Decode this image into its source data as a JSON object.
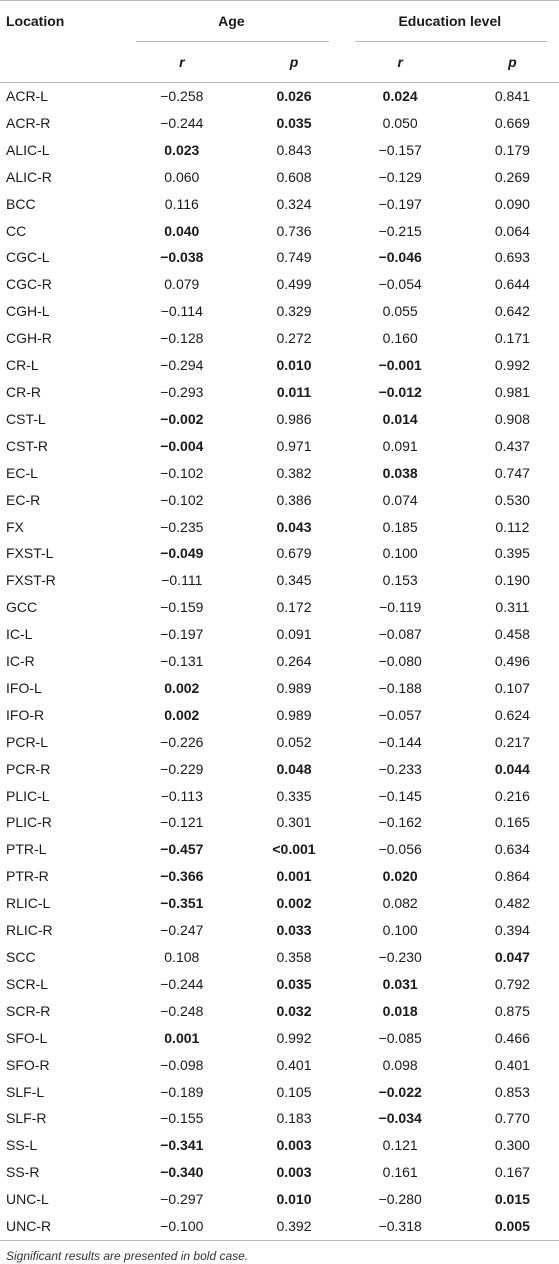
{
  "headers": {
    "location": "Location",
    "age": "Age",
    "education": "Education level",
    "r": "r",
    "p": "p"
  },
  "rows": [
    {
      "loc": "ACR-L",
      "age_r": "−0.258",
      "age_p": "0.026",
      "edu_r": "0.024",
      "edu_p": "0.841",
      "bold": [
        false,
        true,
        true,
        false
      ]
    },
    {
      "loc": "ACR-R",
      "age_r": "−0.244",
      "age_p": "0.035",
      "edu_r": "0.050",
      "edu_p": "0.669",
      "bold": [
        false,
        true,
        false,
        false
      ]
    },
    {
      "loc": "ALIC-L",
      "age_r": "0.023",
      "age_p": "0.843",
      "edu_r": "−0.157",
      "edu_p": "0.179",
      "bold": [
        true,
        false,
        false,
        false
      ]
    },
    {
      "loc": "ALIC-R",
      "age_r": "0.060",
      "age_p": "0.608",
      "edu_r": "−0.129",
      "edu_p": "0.269",
      "bold": [
        false,
        false,
        false,
        false
      ]
    },
    {
      "loc": "BCC",
      "age_r": "0.116",
      "age_p": "0.324",
      "edu_r": "−0.197",
      "edu_p": "0.090",
      "bold": [
        false,
        false,
        false,
        false
      ]
    },
    {
      "loc": "CC",
      "age_r": "0.040",
      "age_p": "0.736",
      "edu_r": "−0.215",
      "edu_p": "0.064",
      "bold": [
        true,
        false,
        false,
        false
      ]
    },
    {
      "loc": "CGC-L",
      "age_r": "−0.038",
      "age_p": "0.749",
      "edu_r": "−0.046",
      "edu_p": "0.693",
      "bold": [
        true,
        false,
        true,
        false
      ]
    },
    {
      "loc": "CGC-R",
      "age_r": "0.079",
      "age_p": "0.499",
      "edu_r": "−0.054",
      "edu_p": "0.644",
      "bold": [
        false,
        false,
        false,
        false
      ]
    },
    {
      "loc": "CGH-L",
      "age_r": "−0.114",
      "age_p": "0.329",
      "edu_r": "0.055",
      "edu_p": "0.642",
      "bold": [
        false,
        false,
        false,
        false
      ]
    },
    {
      "loc": "CGH-R",
      "age_r": "−0.128",
      "age_p": "0.272",
      "edu_r": "0.160",
      "edu_p": "0.171",
      "bold": [
        false,
        false,
        false,
        false
      ]
    },
    {
      "loc": "CR-L",
      "age_r": "−0.294",
      "age_p": "0.010",
      "edu_r": "−0.001",
      "edu_p": "0.992",
      "bold": [
        false,
        true,
        true,
        false
      ]
    },
    {
      "loc": "CR-R",
      "age_r": "−0.293",
      "age_p": "0.011",
      "edu_r": "−0.012",
      "edu_p": "0.981",
      "bold": [
        false,
        true,
        true,
        false
      ]
    },
    {
      "loc": "CST-L",
      "age_r": "−0.002",
      "age_p": "0.986",
      "edu_r": "0.014",
      "edu_p": "0.908",
      "bold": [
        true,
        false,
        true,
        false
      ]
    },
    {
      "loc": "CST-R",
      "age_r": "−0.004",
      "age_p": "0.971",
      "edu_r": "0.091",
      "edu_p": "0.437",
      "bold": [
        true,
        false,
        false,
        false
      ]
    },
    {
      "loc": "EC-L",
      "age_r": "−0.102",
      "age_p": "0.382",
      "edu_r": "0.038",
      "edu_p": "0.747",
      "bold": [
        false,
        false,
        true,
        false
      ]
    },
    {
      "loc": "EC-R",
      "age_r": "−0.102",
      "age_p": "0.386",
      "edu_r": "0.074",
      "edu_p": "0.530",
      "bold": [
        false,
        false,
        false,
        false
      ]
    },
    {
      "loc": "FX",
      "age_r": "−0.235",
      "age_p": "0.043",
      "edu_r": "0.185",
      "edu_p": "0.112",
      "bold": [
        false,
        true,
        false,
        false
      ]
    },
    {
      "loc": "FXST-L",
      "age_r": "−0.049",
      "age_p": "0.679",
      "edu_r": "0.100",
      "edu_p": "0.395",
      "bold": [
        true,
        false,
        false,
        false
      ]
    },
    {
      "loc": "FXST-R",
      "age_r": "−0.111",
      "age_p": "0.345",
      "edu_r": "0.153",
      "edu_p": "0.190",
      "bold": [
        false,
        false,
        false,
        false
      ]
    },
    {
      "loc": "GCC",
      "age_r": "−0.159",
      "age_p": "0.172",
      "edu_r": "−0.119",
      "edu_p": "0.311",
      "bold": [
        false,
        false,
        false,
        false
      ]
    },
    {
      "loc": "IC-L",
      "age_r": "−0.197",
      "age_p": "0.091",
      "edu_r": "−0.087",
      "edu_p": "0.458",
      "bold": [
        false,
        false,
        false,
        false
      ]
    },
    {
      "loc": "IC-R",
      "age_r": "−0.131",
      "age_p": "0.264",
      "edu_r": "−0.080",
      "edu_p": "0.496",
      "bold": [
        false,
        false,
        false,
        false
      ]
    },
    {
      "loc": "IFO-L",
      "age_r": "0.002",
      "age_p": "0.989",
      "edu_r": "−0.188",
      "edu_p": "0.107",
      "bold": [
        true,
        false,
        false,
        false
      ]
    },
    {
      "loc": "IFO-R",
      "age_r": "0.002",
      "age_p": "0.989",
      "edu_r": "−0.057",
      "edu_p": "0.624",
      "bold": [
        true,
        false,
        false,
        false
      ]
    },
    {
      "loc": "PCR-L",
      "age_r": "−0.226",
      "age_p": "0.052",
      "edu_r": "−0.144",
      "edu_p": "0.217",
      "bold": [
        false,
        false,
        false,
        false
      ]
    },
    {
      "loc": "PCR-R",
      "age_r": "−0.229",
      "age_p": "0.048",
      "edu_r": "−0.233",
      "edu_p": "0.044",
      "bold": [
        false,
        true,
        false,
        true
      ]
    },
    {
      "loc": "PLIC-L",
      "age_r": "−0.113",
      "age_p": "0.335",
      "edu_r": "−0.145",
      "edu_p": "0.216",
      "bold": [
        false,
        false,
        false,
        false
      ]
    },
    {
      "loc": "PLIC-R",
      "age_r": "−0.121",
      "age_p": "0.301",
      "edu_r": "−0.162",
      "edu_p": "0.165",
      "bold": [
        false,
        false,
        false,
        false
      ]
    },
    {
      "loc": "PTR-L",
      "age_r": "−0.457",
      "age_p": "<0.001",
      "edu_r": "−0.056",
      "edu_p": "0.634",
      "bold": [
        true,
        true,
        false,
        false
      ]
    },
    {
      "loc": "PTR-R",
      "age_r": "−0.366",
      "age_p": "0.001",
      "edu_r": "0.020",
      "edu_p": "0.864",
      "bold": [
        true,
        true,
        true,
        false
      ]
    },
    {
      "loc": "RLIC-L",
      "age_r": "−0.351",
      "age_p": "0.002",
      "edu_r": "0.082",
      "edu_p": "0.482",
      "bold": [
        true,
        true,
        false,
        false
      ]
    },
    {
      "loc": "RLIC-R",
      "age_r": "−0.247",
      "age_p": "0.033",
      "edu_r": "0.100",
      "edu_p": "0.394",
      "bold": [
        false,
        true,
        false,
        false
      ]
    },
    {
      "loc": "SCC",
      "age_r": "0.108",
      "age_p": "0.358",
      "edu_r": "−0.230",
      "edu_p": "0.047",
      "bold": [
        false,
        false,
        false,
        true
      ]
    },
    {
      "loc": "SCR-L",
      "age_r": "−0.244",
      "age_p": "0.035",
      "edu_r": "0.031",
      "edu_p": "0.792",
      "bold": [
        false,
        true,
        true,
        false
      ]
    },
    {
      "loc": "SCR-R",
      "age_r": "−0.248",
      "age_p": "0.032",
      "edu_r": "0.018",
      "edu_p": "0.875",
      "bold": [
        false,
        true,
        true,
        false
      ]
    },
    {
      "loc": "SFO-L",
      "age_r": "0.001",
      "age_p": "0.992",
      "edu_r": "−0.085",
      "edu_p": "0.466",
      "bold": [
        true,
        false,
        false,
        false
      ]
    },
    {
      "loc": "SFO-R",
      "age_r": "−0.098",
      "age_p": "0.401",
      "edu_r": "0.098",
      "edu_p": "0.401",
      "bold": [
        false,
        false,
        false,
        false
      ]
    },
    {
      "loc": "SLF-L",
      "age_r": "−0.189",
      "age_p": "0.105",
      "edu_r": "−0.022",
      "edu_p": "0.853",
      "bold": [
        false,
        false,
        true,
        false
      ]
    },
    {
      "loc": "SLF-R",
      "age_r": "−0.155",
      "age_p": "0.183",
      "edu_r": "−0.034",
      "edu_p": "0.770",
      "bold": [
        false,
        false,
        true,
        false
      ]
    },
    {
      "loc": "SS-L",
      "age_r": "−0.341",
      "age_p": "0.003",
      "edu_r": "0.121",
      "edu_p": "0.300",
      "bold": [
        true,
        true,
        false,
        false
      ]
    },
    {
      "loc": "SS-R",
      "age_r": "−0.340",
      "age_p": "0.003",
      "edu_r": "0.161",
      "edu_p": "0.167",
      "bold": [
        true,
        true,
        false,
        false
      ]
    },
    {
      "loc": "UNC-L",
      "age_r": "−0.297",
      "age_p": "0.010",
      "edu_r": "−0.280",
      "edu_p": "0.015",
      "bold": [
        false,
        true,
        false,
        true
      ]
    },
    {
      "loc": "UNC-R",
      "age_r": "−0.100",
      "age_p": "0.392",
      "edu_r": "−0.318",
      "edu_p": "0.005",
      "bold": [
        false,
        false,
        false,
        true
      ]
    }
  ],
  "footnote": "Significant results are presented in bold case."
}
